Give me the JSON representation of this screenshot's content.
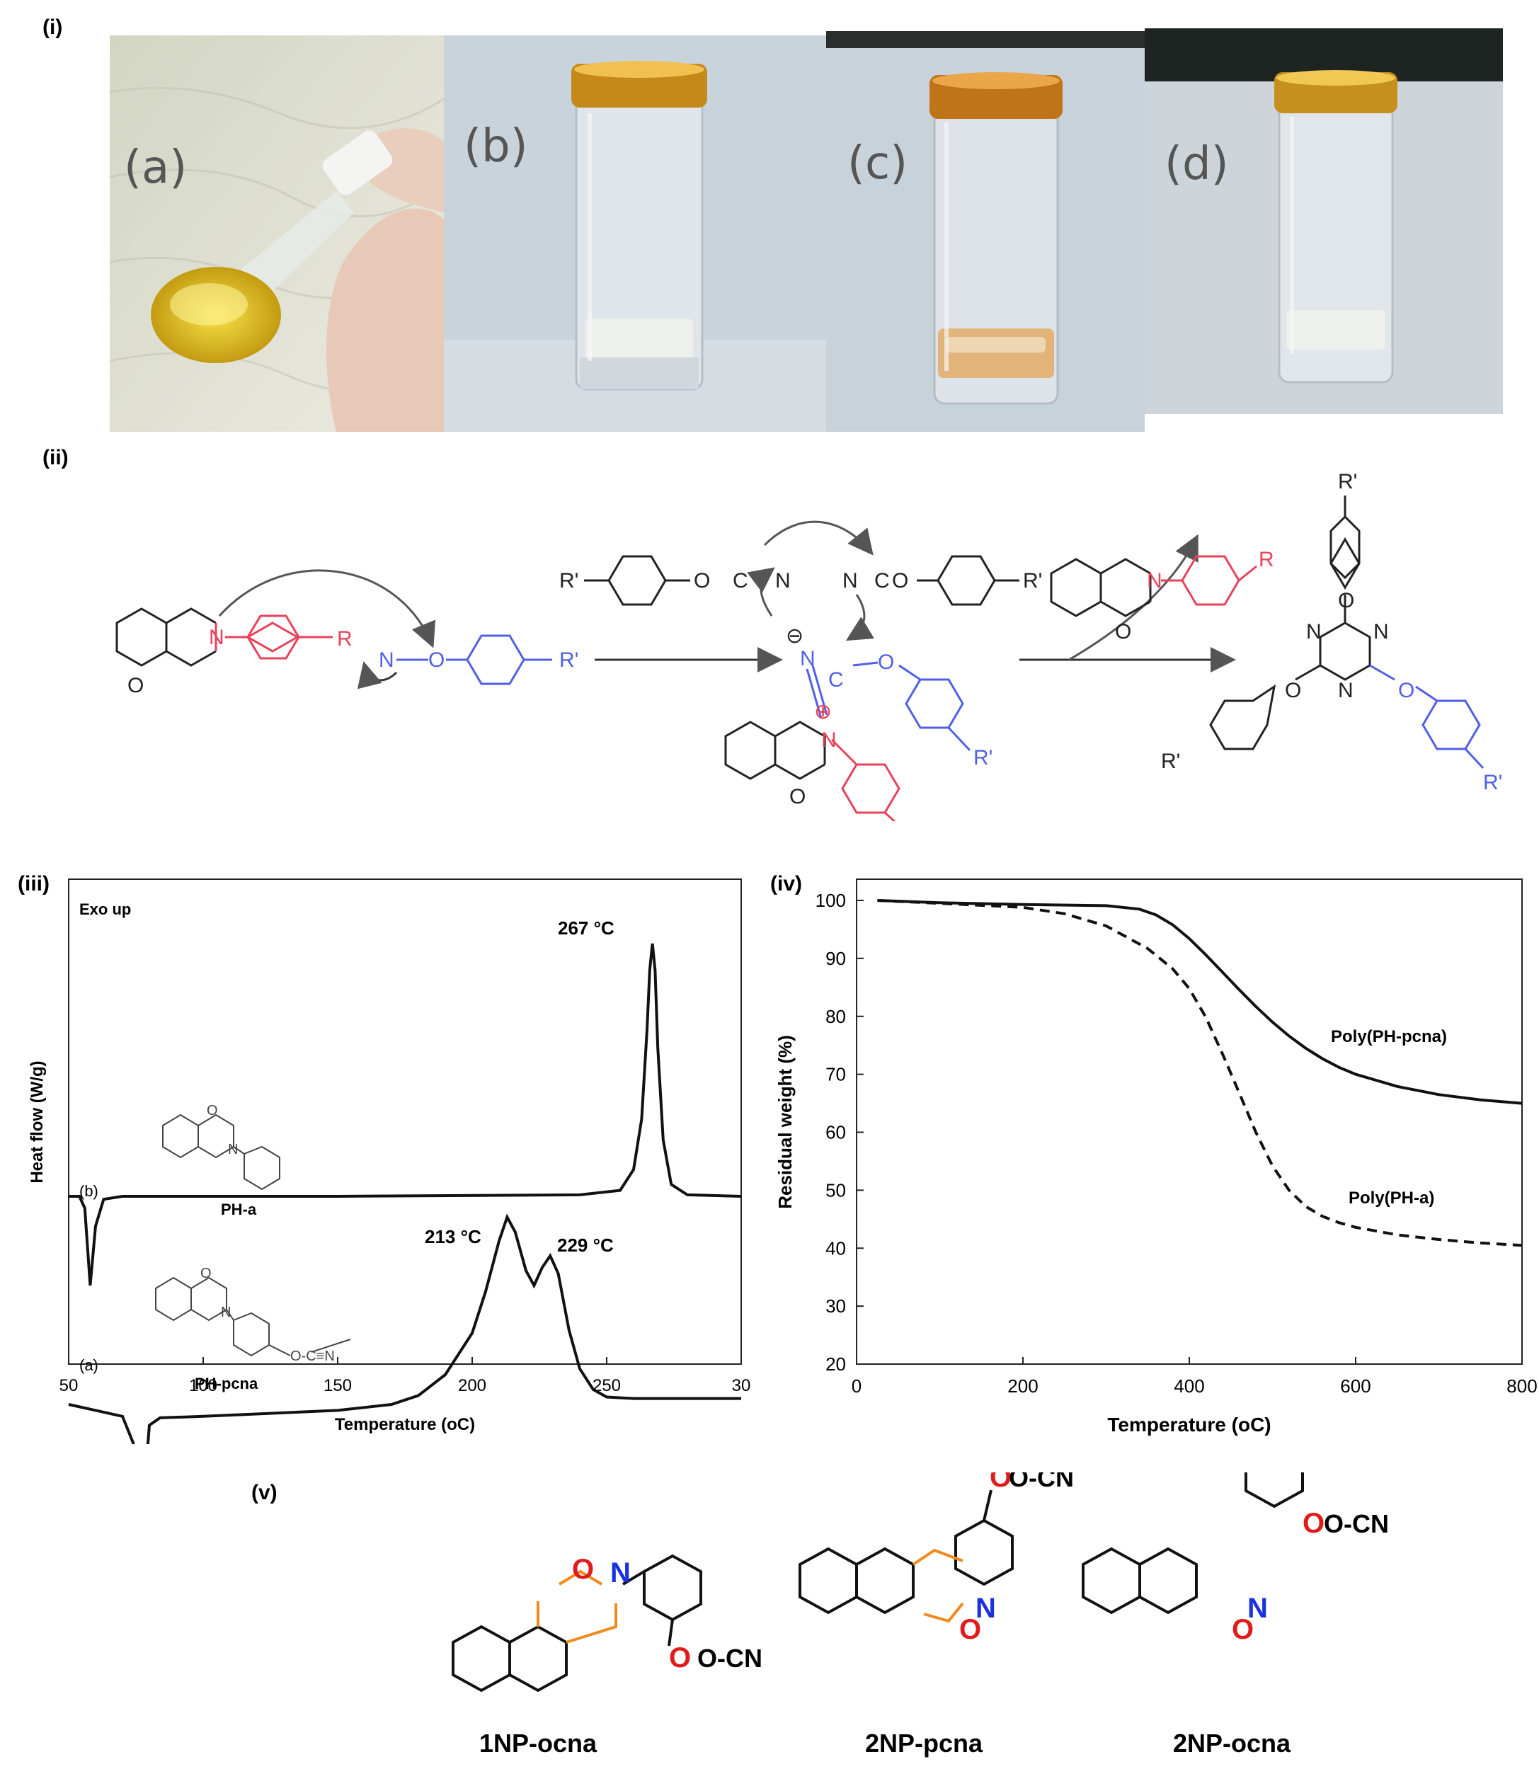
{
  "figure": {
    "panel_i": {
      "label": "(i)",
      "photos": [
        {
          "label": "(a)"
        },
        {
          "label": "(b)"
        },
        {
          "label": "(c)"
        },
        {
          "label": "(d)"
        }
      ]
    },
    "panel_ii": {
      "label": "(ii)",
      "atom_R": "R",
      "atom_Rp": "R'",
      "atom_N": "N",
      "atom_O": "O",
      "atom_C": "C"
    },
    "panel_iii": {
      "label": "(iii)"
    },
    "panel_iv": {
      "label": "(iv)"
    },
    "panel_v": {
      "label": "(v)",
      "compounds": [
        {
          "name": "1NP-ocna",
          "substituent": "O-CN"
        },
        {
          "name": "2NP-pcna",
          "substituent": "O-CN"
        },
        {
          "name": "2NP-ocna",
          "substituent": "O-CN"
        }
      ]
    },
    "colors": {
      "red_fragment": "#e8425a",
      "blue_fragment": "#4f5fe8",
      "orange_ring": "#f28a1e",
      "heteroatom_red": "#e01b1b",
      "heteroatom_blue": "#1a32e0"
    }
  },
  "chart_data": [
    {
      "type": "line",
      "panel": "(iii)",
      "title": "",
      "annotation": "Exo up",
      "xlabel": "Temperature (oC)",
      "ylabel": "Heat flow (W/g)",
      "xlim": [
        50,
        300
      ],
      "x_ticks": [
        "50",
        "100",
        "150",
        "200",
        "250",
        "30"
      ],
      "y_ticks": [],
      "series": [
        {
          "name": "(b)",
          "compound": "PH-a",
          "x": [
            50,
            54,
            56,
            58,
            60,
            63,
            70,
            150,
            240,
            255,
            260,
            263,
            265,
            266,
            267,
            268,
            269,
            271,
            274,
            280,
            300
          ],
          "y": [
            0.0,
            0.0,
            -0.4,
            -3.0,
            -1.0,
            -0.1,
            0.0,
            0.0,
            0.05,
            0.2,
            0.9,
            2.6,
            5.6,
            7.6,
            8.5,
            7.6,
            5.0,
            1.9,
            0.4,
            0.05,
            0.0
          ]
        },
        {
          "name": "(a)",
          "compound": "PH-pcna",
          "x": [
            50,
            70,
            74,
            76,
            77,
            78,
            80,
            84,
            100,
            150,
            170,
            180,
            190,
            200,
            205,
            210,
            213,
            216,
            220,
            223,
            226,
            229,
            232,
            236,
            240,
            245,
            250,
            260,
            300
          ],
          "y": [
            -7.0,
            -7.4,
            -8.3,
            -10.0,
            -11.8,
            -10.0,
            -7.7,
            -7.45,
            -7.4,
            -7.2,
            -7.0,
            -6.7,
            -6.0,
            -4.6,
            -3.2,
            -1.5,
            -0.7,
            -1.2,
            -2.5,
            -3.0,
            -2.4,
            -2.0,
            -2.6,
            -4.5,
            -5.8,
            -6.5,
            -6.75,
            -6.8,
            -6.8
          ]
        }
      ],
      "annotations": [
        "267 °C",
        "213 °C",
        "229 °C"
      ],
      "structure_labels": [
        "PH-a",
        "PH-pcna"
      ]
    },
    {
      "type": "line",
      "panel": "(iv)",
      "title": "",
      "xlabel": "Temperature (oC)",
      "ylabel": "Residual weight (%)",
      "xlim": [
        0,
        800
      ],
      "ylim": [
        20,
        100
      ],
      "x_ticks": [
        "0",
        "200",
        "400",
        "600",
        "800"
      ],
      "y_ticks": [
        "20",
        "30",
        "40",
        "50",
        "60",
        "70",
        "80",
        "90",
        "100"
      ],
      "grid": false,
      "series": [
        {
          "name": "Poly(PH-pcna)",
          "style": "solid",
          "x": [
            25,
            100,
            200,
            300,
            340,
            360,
            380,
            400,
            420,
            440,
            460,
            480,
            500,
            520,
            540,
            560,
            580,
            600,
            650,
            700,
            750,
            800
          ],
          "y": [
            100,
            99.6,
            99.3,
            99.1,
            98.5,
            97.5,
            95.8,
            93.4,
            90.6,
            87.6,
            84.6,
            81.7,
            79.0,
            76.6,
            74.5,
            72.7,
            71.2,
            70.0,
            67.9,
            66.5,
            65.6,
            65.0
          ]
        },
        {
          "name": "Poly(PH-a)",
          "style": "dashed",
          "x": [
            25,
            100,
            200,
            250,
            300,
            350,
            380,
            400,
            420,
            440,
            460,
            480,
            500,
            520,
            540,
            560,
            580,
            600,
            650,
            700,
            750,
            800
          ],
          "y": [
            100,
            99.5,
            98.8,
            97.7,
            95.6,
            91.7,
            88.2,
            84.8,
            79.8,
            73.5,
            66.8,
            60.0,
            54.2,
            50.0,
            47.2,
            45.5,
            44.4,
            43.6,
            42.3,
            41.5,
            40.9,
            40.5
          ]
        }
      ]
    }
  ]
}
